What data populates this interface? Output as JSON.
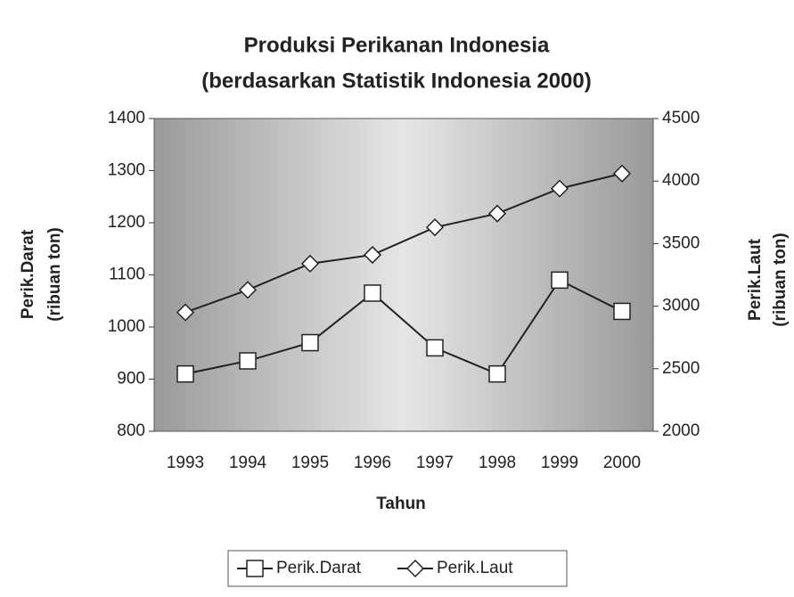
{
  "chart_data": {
    "type": "line",
    "title": "Produksi Perikanan Indonesia",
    "subtitle": "(berdasarkan Statistik Indonesia 2000)",
    "x_label": "Tahun",
    "y_label": [
      "Perik.Darat",
      "(ribuan ton)"
    ],
    "y2_label": [
      "Perik.Laut",
      "(ribuan ton)"
    ],
    "categories": [
      "1993",
      "1994",
      "1995",
      "1996",
      "1997",
      "1998",
      "1999",
      "2000"
    ],
    "ylim": [
      800,
      1400
    ],
    "yticks": [
      800,
      900,
      1000,
      1100,
      1200,
      1300,
      1400
    ],
    "y2lim": [
      2000,
      4500
    ],
    "y2ticks": [
      2000,
      2500,
      3000,
      3500,
      4000,
      4500
    ],
    "legend": "bottom",
    "series": [
      {
        "name": "Perik.Darat",
        "color": "#222222",
        "marker": "square",
        "values": [
          910,
          935,
          970,
          1065,
          960,
          910,
          1090,
          1030
        ]
      },
      {
        "name": "Perik.Laut",
        "color": "#222222",
        "marker": "diamond",
        "axis": "y2",
        "values": [
          2950,
          3130,
          3340,
          3410,
          3630,
          3740,
          3940,
          4060
        ]
      }
    ]
  }
}
